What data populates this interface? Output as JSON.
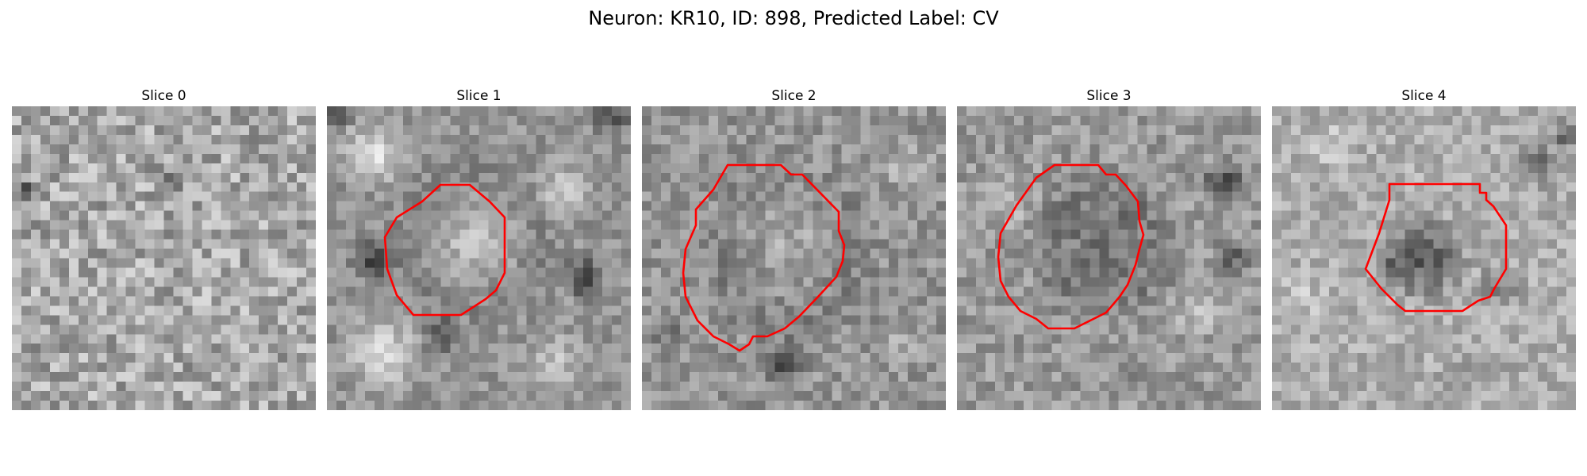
{
  "figure": {
    "title": "Neuron: KR10, ID: 898, Predicted Label: CV",
    "contour_color": "#ff0000"
  },
  "panels": [
    {
      "title": "Slice 0"
    },
    {
      "title": "Slice 1"
    },
    {
      "title": "Slice 2"
    },
    {
      "title": "Slice 3"
    },
    {
      "title": "Slice 4"
    }
  ]
}
